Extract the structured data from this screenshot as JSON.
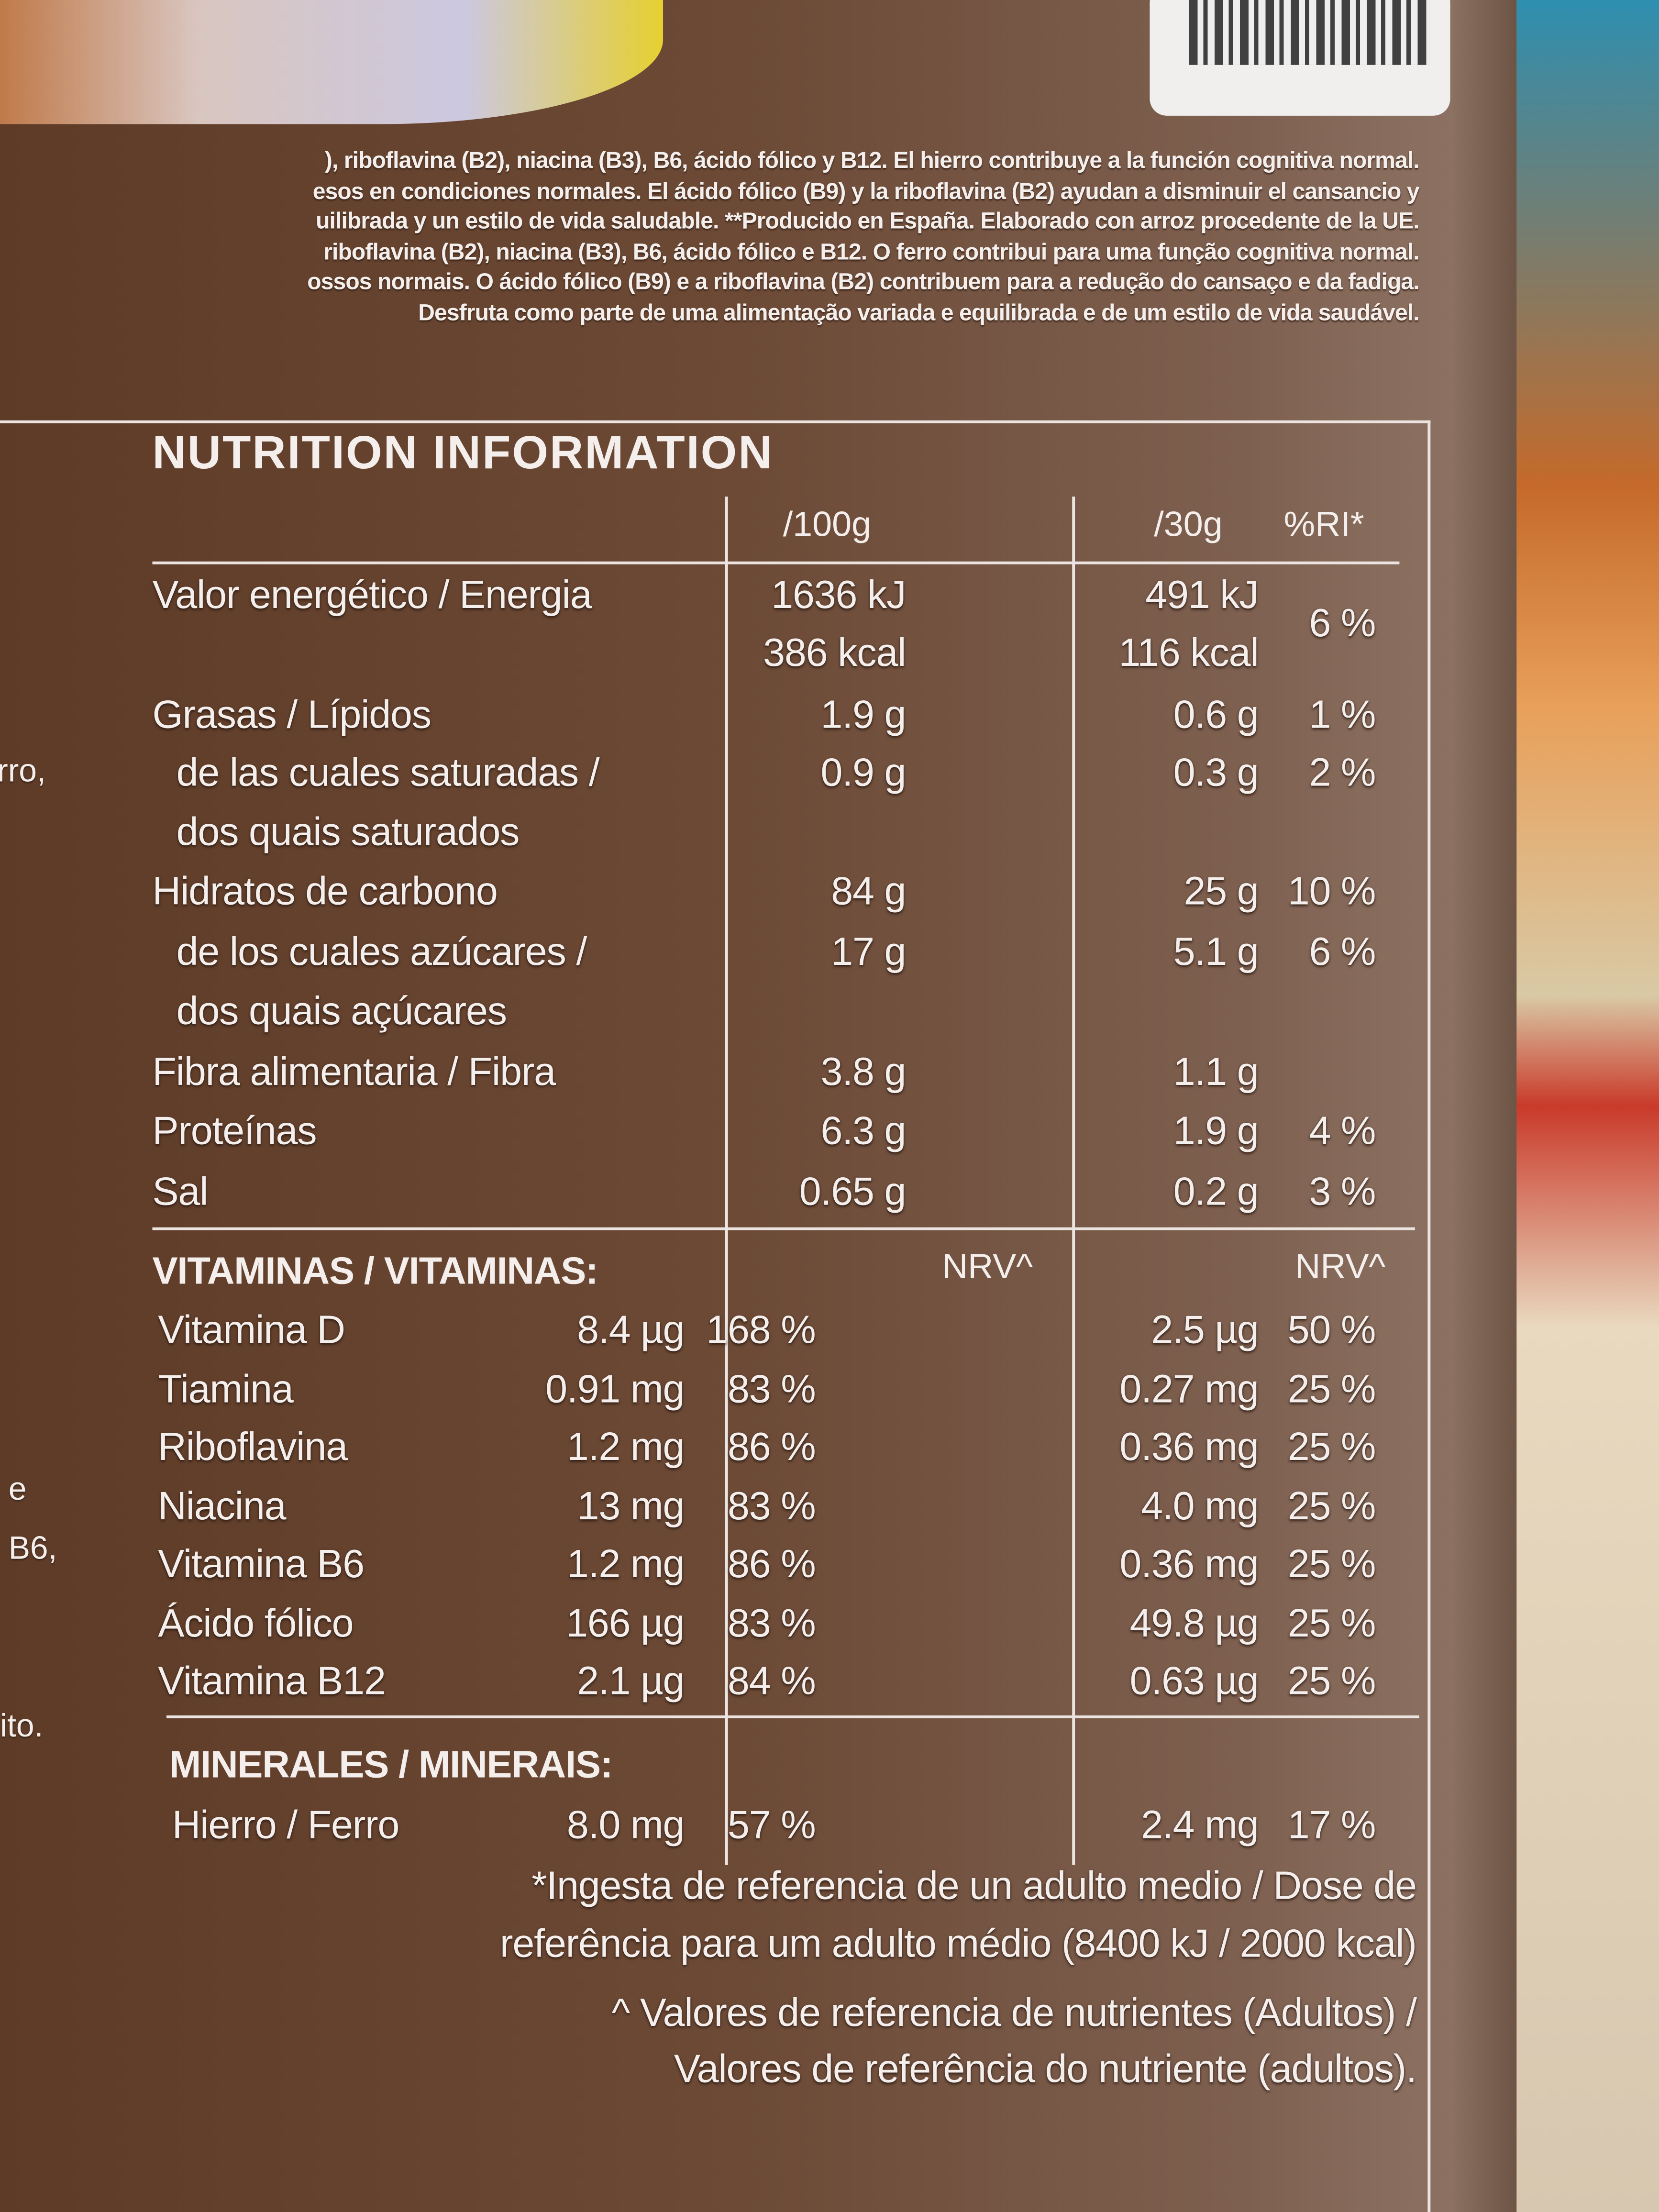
{
  "claims": [
    "), riboflavina (B2), niacina (B3), B6, ácido fólico y B12. El hierro contribuye a la función cognitiva normal.",
    "esos en condiciones normales. El ácido fólico (B9) y la riboflavina (B2) ayudan a disminuir el cansancio y",
    "uilibrada y un estilo de vida saludable. **Producido en España. Elaborado con arroz procedente de la UE.",
    "riboflavina (B2), niacina (B3), B6, ácido fólico e B12. O ferro contribui para uma função cognitiva normal.",
    "ossos normais. O ácido fólico (B9) e a riboflavina (B2) contribuem para a redução do cansaço e da fadiga.",
    "Desfruta como parte de uma alimentação variada e equilibrada e de um estilo de vida saudável."
  ],
  "left_fragments": [
    "rro,",
    "e",
    "B6,",
    "ito."
  ],
  "nutrition": {
    "title": "NUTRITION INFORMATION",
    "headers": {
      "per100": "/100g",
      "per30": "/30g",
      "ri": "%RI*"
    },
    "rows": [
      {
        "label": "Valor energético / Energia",
        "per100": "1636 kJ",
        "per30": "491 kJ",
        "ri": "6 %"
      },
      {
        "label": "",
        "per100": "386 kcal",
        "per30": "116 kcal",
        "ri": ""
      },
      {
        "label": "Grasas / Lípidos",
        "per100": "1.9 g",
        "per30": "0.6 g",
        "ri": "1 %"
      },
      {
        "label": "de las cuales saturadas /",
        "indent": true,
        "per100": "0.9 g",
        "per30": "0.3 g",
        "ri": "2 %"
      },
      {
        "label": "dos quais saturados",
        "indent": true,
        "per100": "",
        "per30": "",
        "ri": ""
      },
      {
        "label": "Hidratos de carbono",
        "per100": "84 g",
        "per30": "25 g",
        "ri": "10 %"
      },
      {
        "label": "de los cuales azúcares /",
        "indent": true,
        "per100": "17 g",
        "per30": "5.1 g",
        "ri": "6 %"
      },
      {
        "label": "dos quais açúcares",
        "indent": true,
        "per100": "",
        "per30": "",
        "ri": ""
      },
      {
        "label": "Fibra alimentaria / Fibra",
        "per100": "3.8 g",
        "per30": "1.1 g",
        "ri": ""
      },
      {
        "label": "Proteínas",
        "per100": "6.3 g",
        "per30": "1.9 g",
        "ri": "4 %"
      },
      {
        "label": "Sal",
        "per100": "0.65 g",
        "per30": "0.2 g",
        "ri": "3 %"
      }
    ],
    "vitamins": {
      "heading": "VITAMINAS / VITAMINAS:",
      "nrv_label": "NRV^",
      "rows": [
        {
          "label": "Vitamina D",
          "per100": "8.4 µg",
          "nrv100": "168 %",
          "per30": "2.5 µg",
          "nrv30": "50 %"
        },
        {
          "label": "Tiamina",
          "per100": "0.91 mg",
          "nrv100": "83 %",
          "per30": "0.27 mg",
          "nrv30": "25 %"
        },
        {
          "label": "Riboflavina",
          "per100": "1.2 mg",
          "nrv100": "86 %",
          "per30": "0.36 mg",
          "nrv30": "25 %"
        },
        {
          "label": "Niacina",
          "per100": "13 mg",
          "nrv100": "83 %",
          "per30": "4.0 mg",
          "nrv30": "25 %"
        },
        {
          "label": "Vitamina B6",
          "per100": "1.2 mg",
          "nrv100": "86 %",
          "per30": "0.36 mg",
          "nrv30": "25 %"
        },
        {
          "label": "Ácido fólico",
          "per100": "166 µg",
          "nrv100": "83 %",
          "per30": "49.8 µg",
          "nrv30": "25 %"
        },
        {
          "label": "Vitamina B12",
          "per100": "2.1 µg",
          "nrv100": "84 %",
          "per30": "0.63 µg",
          "nrv30": "25 %"
        }
      ]
    },
    "minerals": {
      "heading": "MINERALES / MINERAIS:",
      "rows": [
        {
          "label": "Hierro / Ferro",
          "per100": "8.0 mg",
          "nrv100": "57 %",
          "per30": "2.4 mg",
          "nrv30": "17 %"
        }
      ]
    },
    "footnotes": [
      "*Ingesta de referencia de un adulto medio / Dose de",
      "referência para um adulto médio (8400 kJ / 2000 kcal)",
      "^ Valores de referencia de nutrientes (Adultos) /",
      "Valores de referência do nutriente (adultos)."
    ]
  }
}
